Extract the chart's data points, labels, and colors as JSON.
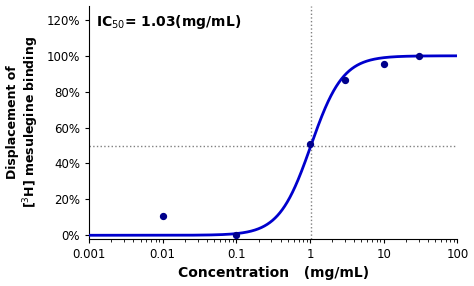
{
  "title": "IC$_{50}$= 1.03(mg/mL)",
  "xlabel_part1": "Concentration",
  "xlabel_part2": "(mg/mL)",
  "ylabel_line1": "Displacement of",
  "ylabel_line2": "[$^{3}$H] mesulegine binding",
  "data_points_x": [
    0.01,
    0.1,
    1.0,
    3.0,
    10.0,
    30.0
  ],
  "data_points_y": [
    0.105,
    0.0,
    0.51,
    0.865,
    0.955,
    1.0
  ],
  "IC50": 1.03,
  "hill": 2.0,
  "curve_color": "#0000CD",
  "point_color": "#00008B",
  "hline_color": "#808080",
  "vline_color": "#808080",
  "xlim": [
    0.001,
    100
  ],
  "ylim": [
    -0.02,
    1.28
  ],
  "yticks": [
    0.0,
    0.2,
    0.4,
    0.6,
    0.8,
    1.0,
    1.2
  ],
  "ytick_labels": [
    "0%",
    "20%",
    "40%",
    "60%",
    "80%",
    "100%",
    "120%"
  ],
  "xticks": [
    0.001,
    0.01,
    0.1,
    1,
    10,
    100
  ],
  "xtick_labels": [
    "0.001",
    "0.01",
    "0.1",
    "1",
    "10",
    "100"
  ],
  "hline_y": 0.5,
  "vline_x": 1.03,
  "background_color": "#ffffff",
  "font_color": "#000000",
  "title_fontsize": 10,
  "label_fontsize": 9,
  "tick_fontsize": 8.5
}
